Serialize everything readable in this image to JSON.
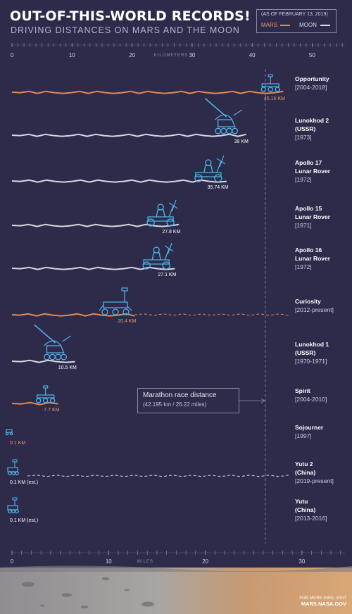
{
  "title": "OUT-OF-THIS-WORLD RECORDS!",
  "subtitle": "DRIVING DISTANCES ON MARS AND THE MOON",
  "legend": {
    "date": "(AS OF FEBRUARY 13, 2019)",
    "mars": "MARS",
    "moon": "MOON"
  },
  "colors": {
    "background": "#2d2a4a",
    "mars": "#e08a5a",
    "moon": "#d8d8e2",
    "rover_icon": "#4fb3e8",
    "grid_tick": "#8f8cab"
  },
  "marathon": {
    "title": "Marathon race distance",
    "detail": "(42.195 km / 26.22 miles)"
  },
  "footer": {
    "line1": "FOR MORE INFO, VISIT",
    "site": "MARS.NASA.GOV"
  },
  "chart_data": {
    "type": "bar",
    "title": "OUT-OF-THIS-WORLD RECORDS!",
    "subtitle": "DRIVING DISTANCES ON MARS AND THE MOON",
    "x_top": {
      "label": "KILOMETERS",
      "ticks": [
        "0",
        "10",
        "20",
        "30",
        "40",
        "50"
      ],
      "range": [
        0,
        50
      ]
    },
    "x_bottom": {
      "label": "MILES",
      "ticks": [
        "0",
        "10",
        "20",
        "30"
      ],
      "range": [
        0,
        31
      ]
    },
    "marathon_km": 42.195,
    "rovers": [
      {
        "name": "Opportunity",
        "dates": "[2004-2018]",
        "km": 45.16,
        "label": "45.16 KM",
        "body": "mars",
        "icon": "mer-rover-icon"
      },
      {
        "name": "Lunokhod 2\n(USSR)",
        "dates": "[1973]",
        "km": 39,
        "label": "39 KM",
        "body": "moon",
        "icon": "lunokhod-icon"
      },
      {
        "name": "Apollo 17\nLunar Rover",
        "dates": "[1972]",
        "km": 35.74,
        "label": "35.74 KM",
        "body": "moon",
        "icon": "lunar-rover-icon"
      },
      {
        "name": "Apollo 15\nLunar Rover",
        "dates": "[1971]",
        "km": 27.8,
        "label": "27.8 KM",
        "body": "moon",
        "icon": "lunar-rover-icon"
      },
      {
        "name": "Apollo 16\nLunar Rover",
        "dates": "[1972]",
        "km": 27.1,
        "label": "27.1 KM",
        "body": "moon",
        "icon": "lunar-rover-icon"
      },
      {
        "name": "Curiosity",
        "dates": "[2012-present]",
        "km": 20.4,
        "label": "20.4 KM",
        "body": "mars",
        "icon": "curiosity-icon",
        "ongoing": true
      },
      {
        "name": "Lunokhod 1\n(USSR)",
        "dates": "[1970-1971]",
        "km": 10.5,
        "label": "10.5 KM",
        "body": "moon",
        "icon": "lunokhod-icon"
      },
      {
        "name": "Spirit",
        "dates": "[2004-2010]",
        "km": 7.7,
        "label": "7.7 KM",
        "body": "mars",
        "icon": "mer-rover-icon"
      },
      {
        "name": "Sojourner",
        "dates": "[1997]",
        "km": 0.1,
        "label": "0.1 KM",
        "body": "mars",
        "icon": "sojourner-icon"
      },
      {
        "name": "Yutu 2\n(China)",
        "dates": "[2019-present]",
        "km": 0.1,
        "label": "0.1 KM (est.)",
        "body": "moon",
        "icon": "yutu-icon",
        "ongoing": true
      },
      {
        "name": "Yutu\n(China)",
        "dates": "[2013-2016]",
        "km": 0.1,
        "label": "0.1 KM (est.)",
        "body": "moon",
        "icon": "yutu-icon"
      }
    ]
  }
}
